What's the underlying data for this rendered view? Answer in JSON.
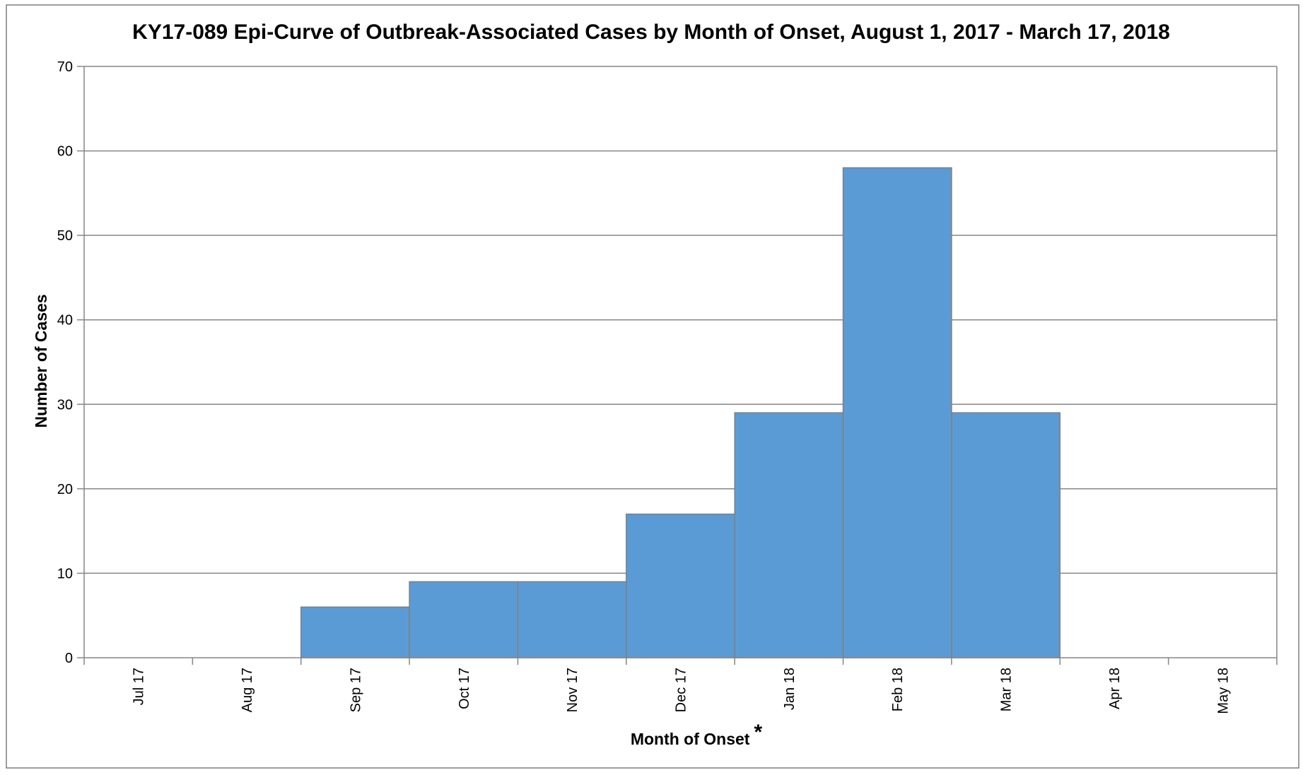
{
  "chart_data": {
    "type": "bar",
    "title": "KY17-089 Epi-Curve of Outbreak-Associated Cases by Month of Onset, August 1, 2017 - March 17, 2018",
    "xlabel": "Month of Onset",
    "xlabel_marker": "*",
    "ylabel": "Number of Cases",
    "categories": [
      "Jul 17",
      "Aug 17",
      "Sep 17",
      "Oct 17",
      "Nov 17",
      "Dec 17",
      "Jan 18",
      "Feb 18",
      "Mar 18",
      "Apr 18",
      "May 18"
    ],
    "values": [
      0,
      0,
      6,
      9,
      9,
      17,
      29,
      58,
      29,
      0,
      0
    ],
    "ylim": [
      0,
      70
    ],
    "yticks": [
      0,
      10,
      20,
      30,
      40,
      50,
      60,
      70
    ],
    "grid": true,
    "legend": "none",
    "colors": {
      "bar_fill": "#5B9BD5",
      "bar_stroke": "#7F7F7F",
      "grid": "#868686"
    }
  }
}
